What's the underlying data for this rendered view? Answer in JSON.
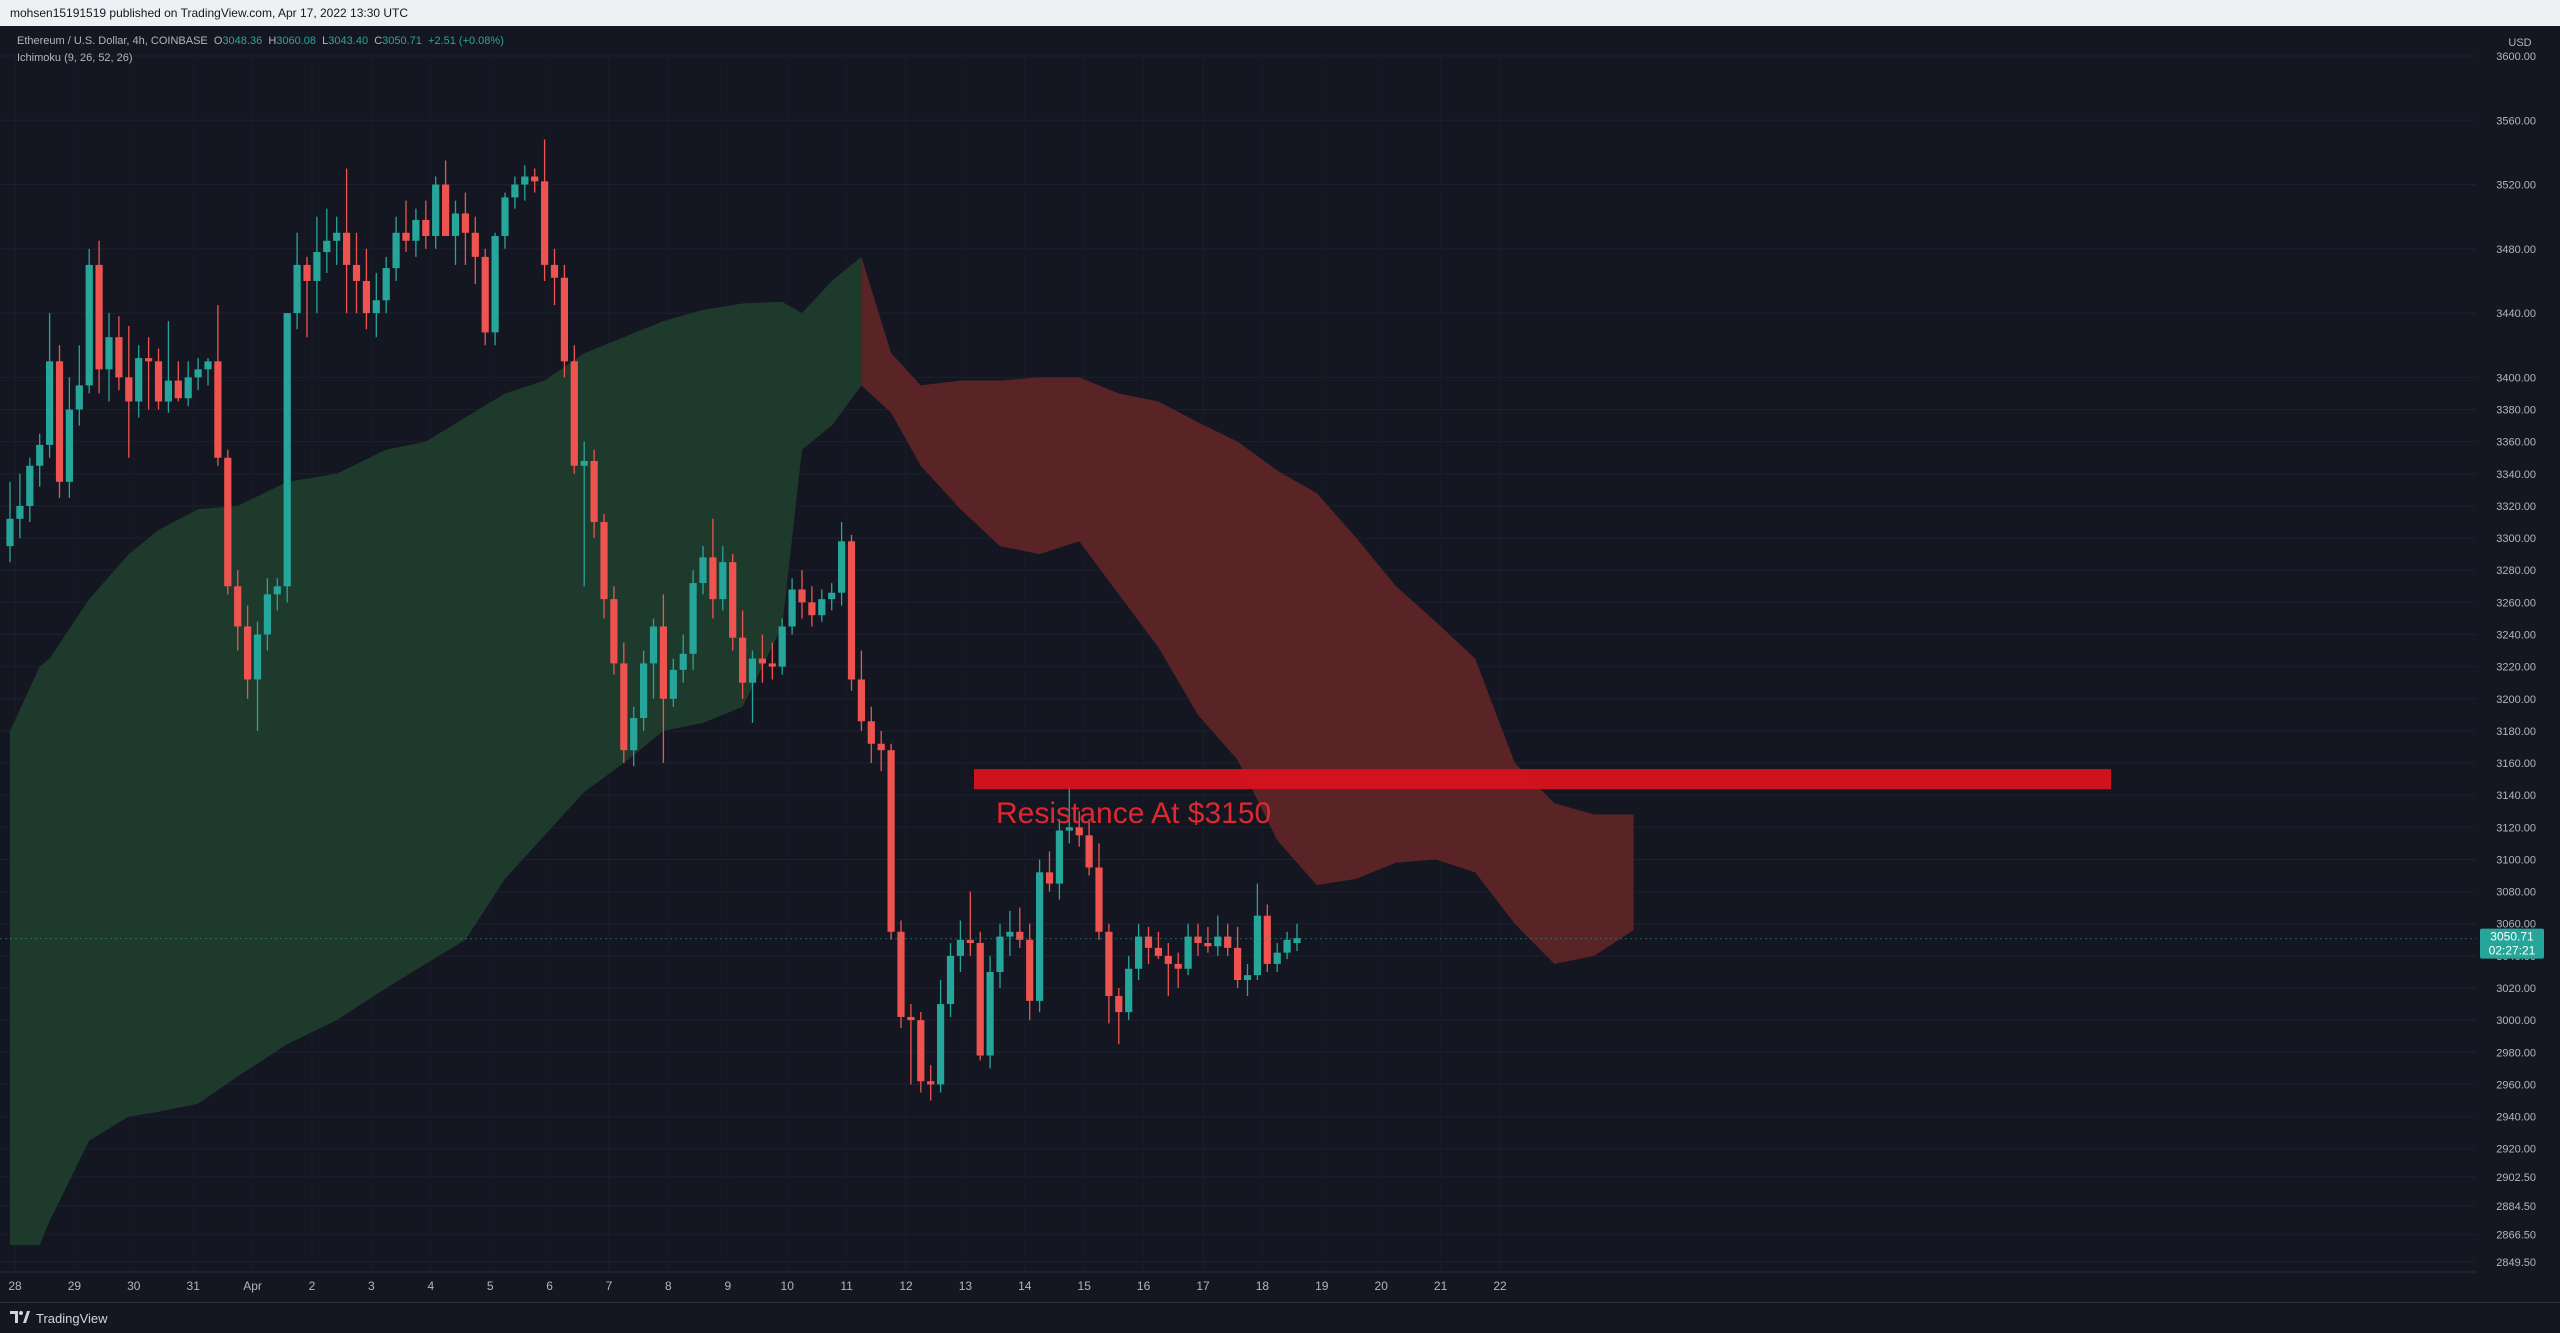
{
  "header": {
    "published": "mohsen15191519 published on TradingView.com, Apr 17, 2022 13:30 UTC"
  },
  "legend": {
    "symbol": "Ethereum / U.S. Dollar, 4h, COINBASE",
    "o_label": "O",
    "o": "3048.36",
    "h_label": "H",
    "h": "3060.08",
    "l_label": "L",
    "l": "3043.40",
    "c_label": "C",
    "c": "3050.71",
    "chg": "+2.51 (+0.08%)",
    "indicator": "Ichimoku (9, 26, 52, 26)"
  },
  "price_axis": {
    "currency": "USD",
    "last_price": "3050.71",
    "countdown": "02:27:21"
  },
  "annotation": {
    "text": "Resistance At $3150"
  },
  "footer": {
    "brand": "TradingView"
  },
  "colors": {
    "background": "#141722",
    "up": "#26a69a",
    "down": "#ef5350",
    "cloud_bull": "#1e3a2c",
    "cloud_bear": "#5a2427",
    "resistance": "#d9121f",
    "axis_text": "#b2b5be"
  },
  "chart_data": {
    "type": "candlestick",
    "symbol": "ETHUSD",
    "timeframe": "4h",
    "x_ticks": [
      "28",
      "29",
      "30",
      "31",
      "Apr",
      "2",
      "3",
      "4",
      "5",
      "6",
      "7",
      "8",
      "9",
      "10",
      "11",
      "12",
      "13",
      "14",
      "15",
      "16",
      "17",
      "18",
      "19",
      "20",
      "21",
      "22"
    ],
    "y_ticks": [
      "3600.00",
      "3560.00",
      "3520.00",
      "3480.00",
      "3440.00",
      "3400.00",
      "3380.00",
      "3360.00",
      "3340.00",
      "3320.00",
      "3300.00",
      "3280.00",
      "3260.00",
      "3240.00",
      "3220.00",
      "3200.00",
      "3180.00",
      "3160.00",
      "3140.00",
      "3120.00",
      "3100.00",
      "3080.00",
      "3060.00",
      "3040.00",
      "3020.00",
      "3000.00",
      "2980.00",
      "2960.00",
      "2940.00",
      "2920.00",
      "2902.50",
      "2884.50",
      "2866.50",
      "2849.50"
    ],
    "candles": [
      {
        "o": 3295,
        "h": 3335,
        "l": 3285,
        "c": 3312
      },
      {
        "o": 3312,
        "h": 3340,
        "l": 3300,
        "c": 3320
      },
      {
        "o": 3320,
        "h": 3350,
        "l": 3310,
        "c": 3345
      },
      {
        "o": 3345,
        "h": 3365,
        "l": 3332,
        "c": 3358
      },
      {
        "o": 3358,
        "h": 3440,
        "l": 3350,
        "c": 3410
      },
      {
        "o": 3410,
        "h": 3420,
        "l": 3325,
        "c": 3335
      },
      {
        "o": 3335,
        "h": 3400,
        "l": 3325,
        "c": 3380
      },
      {
        "o": 3380,
        "h": 3420,
        "l": 3370,
        "c": 3395
      },
      {
        "o": 3395,
        "h": 3480,
        "l": 3390,
        "c": 3470
      },
      {
        "o": 3470,
        "h": 3485,
        "l": 3390,
        "c": 3405
      },
      {
        "o": 3405,
        "h": 3440,
        "l": 3385,
        "c": 3425
      },
      {
        "o": 3425,
        "h": 3438,
        "l": 3392,
        "c": 3400
      },
      {
        "o": 3400,
        "h": 3432,
        "l": 3350,
        "c": 3385
      },
      {
        "o": 3385,
        "h": 3420,
        "l": 3375,
        "c": 3412
      },
      {
        "o": 3412,
        "h": 3425,
        "l": 3380,
        "c": 3410
      },
      {
        "o": 3410,
        "h": 3418,
        "l": 3380,
        "c": 3385
      },
      {
        "o": 3385,
        "h": 3435,
        "l": 3378,
        "c": 3398
      },
      {
        "o": 3398,
        "h": 3410,
        "l": 3385,
        "c": 3387
      },
      {
        "o": 3387,
        "h": 3410,
        "l": 3382,
        "c": 3400
      },
      {
        "o": 3400,
        "h": 3412,
        "l": 3392,
        "c": 3405
      },
      {
        "o": 3405,
        "h": 3412,
        "l": 3395,
        "c": 3410
      },
      {
        "o": 3410,
        "h": 3445,
        "l": 3345,
        "c": 3350
      },
      {
        "o": 3350,
        "h": 3355,
        "l": 3265,
        "c": 3270
      },
      {
        "o": 3270,
        "h": 3280,
        "l": 3230,
        "c": 3245
      },
      {
        "o": 3245,
        "h": 3258,
        "l": 3200,
        "c": 3212
      },
      {
        "o": 3212,
        "h": 3248,
        "l": 3180,
        "c": 3240
      },
      {
        "o": 3240,
        "h": 3275,
        "l": 3230,
        "c": 3265
      },
      {
        "o": 3265,
        "h": 3275,
        "l": 3255,
        "c": 3270
      },
      {
        "o": 3270,
        "h": 3440,
        "l": 3260,
        "c": 3440
      },
      {
        "o": 3440,
        "h": 3490,
        "l": 3430,
        "c": 3470
      },
      {
        "o": 3470,
        "h": 3475,
        "l": 3425,
        "c": 3460
      },
      {
        "o": 3460,
        "h": 3500,
        "l": 3440,
        "c": 3478
      },
      {
        "o": 3478,
        "h": 3505,
        "l": 3465,
        "c": 3485
      },
      {
        "o": 3485,
        "h": 3500,
        "l": 3470,
        "c": 3490
      },
      {
        "o": 3490,
        "h": 3530,
        "l": 3440,
        "c": 3470
      },
      {
        "o": 3470,
        "h": 3490,
        "l": 3440,
        "c": 3460
      },
      {
        "o": 3460,
        "h": 3480,
        "l": 3430,
        "c": 3440
      },
      {
        "o": 3440,
        "h": 3465,
        "l": 3425,
        "c": 3448
      },
      {
        "o": 3448,
        "h": 3475,
        "l": 3440,
        "c": 3468
      },
      {
        "o": 3468,
        "h": 3500,
        "l": 3460,
        "c": 3490
      },
      {
        "o": 3490,
        "h": 3510,
        "l": 3478,
        "c": 3485
      },
      {
        "o": 3485,
        "h": 3505,
        "l": 3475,
        "c": 3498
      },
      {
        "o": 3498,
        "h": 3510,
        "l": 3480,
        "c": 3488
      },
      {
        "o": 3488,
        "h": 3525,
        "l": 3480,
        "c": 3520
      },
      {
        "o": 3520,
        "h": 3535,
        "l": 3490,
        "c": 3488
      },
      {
        "o": 3488,
        "h": 3510,
        "l": 3470,
        "c": 3502
      },
      {
        "o": 3502,
        "h": 3515,
        "l": 3470,
        "c": 3490
      },
      {
        "o": 3490,
        "h": 3500,
        "l": 3458,
        "c": 3475
      },
      {
        "o": 3475,
        "h": 3480,
        "l": 3420,
        "c": 3428
      },
      {
        "o": 3428,
        "h": 3490,
        "l": 3420,
        "c": 3488
      },
      {
        "o": 3488,
        "h": 3515,
        "l": 3480,
        "c": 3512
      },
      {
        "o": 3512,
        "h": 3525,
        "l": 3505,
        "c": 3520
      },
      {
        "o": 3520,
        "h": 3532,
        "l": 3510,
        "c": 3525
      },
      {
        "o": 3525,
        "h": 3530,
        "l": 3515,
        "c": 3522
      },
      {
        "o": 3522,
        "h": 3548,
        "l": 3460,
        "c": 3470
      },
      {
        "o": 3470,
        "h": 3480,
        "l": 3445,
        "c": 3462
      },
      {
        "o": 3462,
        "h": 3470,
        "l": 3400,
        "c": 3410
      },
      {
        "o": 3410,
        "h": 3420,
        "l": 3340,
        "c": 3345
      },
      {
        "o": 3345,
        "h": 3360,
        "l": 3270,
        "c": 3348
      },
      {
        "o": 3348,
        "h": 3355,
        "l": 3300,
        "c": 3310
      },
      {
        "o": 3310,
        "h": 3315,
        "l": 3250,
        "c": 3262
      },
      {
        "o": 3262,
        "h": 3270,
        "l": 3215,
        "c": 3222
      },
      {
        "o": 3222,
        "h": 3235,
        "l": 3160,
        "c": 3168
      },
      {
        "o": 3168,
        "h": 3195,
        "l": 3158,
        "c": 3188
      },
      {
        "o": 3188,
        "h": 3230,
        "l": 3180,
        "c": 3222
      },
      {
        "o": 3222,
        "h": 3250,
        "l": 3200,
        "c": 3245
      },
      {
        "o": 3245,
        "h": 3265,
        "l": 3160,
        "c": 3200
      },
      {
        "o": 3200,
        "h": 3225,
        "l": 3195,
        "c": 3218
      },
      {
        "o": 3218,
        "h": 3240,
        "l": 3210,
        "c": 3228
      },
      {
        "o": 3228,
        "h": 3280,
        "l": 3218,
        "c": 3272
      },
      {
        "o": 3272,
        "h": 3295,
        "l": 3265,
        "c": 3288
      },
      {
        "o": 3288,
        "h": 3312,
        "l": 3250,
        "c": 3262
      },
      {
        "o": 3262,
        "h": 3295,
        "l": 3255,
        "c": 3285
      },
      {
        "o": 3285,
        "h": 3290,
        "l": 3230,
        "c": 3238
      },
      {
        "o": 3238,
        "h": 3255,
        "l": 3200,
        "c": 3210
      },
      {
        "o": 3210,
        "h": 3230,
        "l": 3185,
        "c": 3225
      },
      {
        "o": 3225,
        "h": 3240,
        "l": 3210,
        "c": 3222
      },
      {
        "o": 3222,
        "h": 3235,
        "l": 3212,
        "c": 3220
      },
      {
        "o": 3220,
        "h": 3250,
        "l": 3215,
        "c": 3245
      },
      {
        "o": 3245,
        "h": 3275,
        "l": 3240,
        "c": 3268
      },
      {
        "o": 3268,
        "h": 3280,
        "l": 3250,
        "c": 3260
      },
      {
        "o": 3260,
        "h": 3270,
        "l": 3245,
        "c": 3252
      },
      {
        "o": 3252,
        "h": 3268,
        "l": 3248,
        "c": 3262
      },
      {
        "o": 3262,
        "h": 3272,
        "l": 3255,
        "c": 3266
      },
      {
        "o": 3266,
        "h": 3310,
        "l": 3258,
        "c": 3298
      },
      {
        "o": 3298,
        "h": 3302,
        "l": 3205,
        "c": 3212
      },
      {
        "o": 3212,
        "h": 3230,
        "l": 3180,
        "c": 3186
      },
      {
        "o": 3186,
        "h": 3195,
        "l": 3160,
        "c": 3172
      },
      {
        "o": 3172,
        "h": 3180,
        "l": 3155,
        "c": 3168
      },
      {
        "o": 3168,
        "h": 3172,
        "l": 3050,
        "c": 3055
      },
      {
        "o": 3055,
        "h": 3062,
        "l": 2995,
        "c": 3002
      },
      {
        "o": 3002,
        "h": 3010,
        "l": 2960,
        "c": 3000
      },
      {
        "o": 3000,
        "h": 3005,
        "l": 2955,
        "c": 2962
      },
      {
        "o": 2962,
        "h": 2972,
        "l": 2950,
        "c": 2960
      },
      {
        "o": 2960,
        "h": 3025,
        "l": 2955,
        "c": 3010
      },
      {
        "o": 3010,
        "h": 3048,
        "l": 3002,
        "c": 3040
      },
      {
        "o": 3040,
        "h": 3062,
        "l": 3030,
        "c": 3050
      },
      {
        "o": 3050,
        "h": 3080,
        "l": 3040,
        "c": 3048
      },
      {
        "o": 3048,
        "h": 3055,
        "l": 2975,
        "c": 2978
      },
      {
        "o": 2978,
        "h": 3040,
        "l": 2970,
        "c": 3030
      },
      {
        "o": 3030,
        "h": 3060,
        "l": 3020,
        "c": 3052
      },
      {
        "o": 3052,
        "h": 3068,
        "l": 3040,
        "c": 3055
      },
      {
        "o": 3055,
        "h": 3070,
        "l": 3045,
        "c": 3050
      },
      {
        "o": 3050,
        "h": 3060,
        "l": 3000,
        "c": 3012
      },
      {
        "o": 3012,
        "h": 3100,
        "l": 3005,
        "c": 3092
      },
      {
        "o": 3092,
        "h": 3105,
        "l": 3080,
        "c": 3085
      },
      {
        "o": 3085,
        "h": 3125,
        "l": 3075,
        "c": 3118
      },
      {
        "o": 3118,
        "h": 3145,
        "l": 3110,
        "c": 3120
      },
      {
        "o": 3120,
        "h": 3130,
        "l": 3108,
        "c": 3115
      },
      {
        "o": 3115,
        "h": 3125,
        "l": 3090,
        "c": 3095
      },
      {
        "o": 3095,
        "h": 3110,
        "l": 3050,
        "c": 3055
      },
      {
        "o": 3055,
        "h": 3060,
        "l": 2998,
        "c": 3015
      },
      {
        "o": 3015,
        "h": 3020,
        "l": 2985,
        "c": 3005
      },
      {
        "o": 3005,
        "h": 3040,
        "l": 3000,
        "c": 3032
      },
      {
        "o": 3032,
        "h": 3060,
        "l": 3025,
        "c": 3052
      },
      {
        "o": 3052,
        "h": 3058,
        "l": 3035,
        "c": 3045
      },
      {
        "o": 3045,
        "h": 3055,
        "l": 3038,
        "c": 3040
      },
      {
        "o": 3040,
        "h": 3048,
        "l": 3015,
        "c": 3035
      },
      {
        "o": 3035,
        "h": 3042,
        "l": 3020,
        "c": 3032
      },
      {
        "o": 3032,
        "h": 3060,
        "l": 3028,
        "c": 3052
      },
      {
        "o": 3052,
        "h": 3060,
        "l": 3040,
        "c": 3048
      },
      {
        "o": 3048,
        "h": 3058,
        "l": 3042,
        "c": 3046
      },
      {
        "o": 3046,
        "h": 3065,
        "l": 3040,
        "c": 3052
      },
      {
        "o": 3052,
        "h": 3060,
        "l": 3040,
        "c": 3045
      },
      {
        "o": 3045,
        "h": 3058,
        "l": 3020,
        "c": 3025
      },
      {
        "o": 3025,
        "h": 3035,
        "l": 3015,
        "c": 3028
      },
      {
        "o": 3028,
        "h": 3085,
        "l": 3025,
        "c": 3065
      },
      {
        "o": 3065,
        "h": 3072,
        "l": 3030,
        "c": 3035
      },
      {
        "o": 3035,
        "h": 3048,
        "l": 3030,
        "c": 3042
      },
      {
        "o": 3042,
        "h": 3055,
        "l": 3038,
        "c": 3050
      },
      {
        "o": 3048,
        "h": 3060,
        "l": 3043,
        "c": 3051
      }
    ],
    "cloud": [
      {
        "t": 0,
        "a": 3180,
        "b": 2860
      },
      {
        "t": 3,
        "a": 3220,
        "b": 2860
      },
      {
        "t": 4,
        "a": 3225,
        "b": 2875
      },
      {
        "t": 8,
        "a": 3262,
        "b": 2925
      },
      {
        "t": 12,
        "a": 3290,
        "b": 2940
      },
      {
        "t": 15,
        "a": 3305,
        "b": 2943
      },
      {
        "t": 19,
        "a": 3318,
        "b": 2948
      },
      {
        "t": 23,
        "a": 3320,
        "b": 2965
      },
      {
        "t": 28,
        "a": 3335,
        "b": 2985
      },
      {
        "t": 33,
        "a": 3340,
        "b": 3000
      },
      {
        "t": 38,
        "a": 3355,
        "b": 3020
      },
      {
        "t": 42,
        "a": 3360,
        "b": 3035
      },
      {
        "t": 46,
        "a": 3375,
        "b": 3050
      },
      {
        "t": 50,
        "a": 3390,
        "b": 3088
      },
      {
        "t": 54,
        "a": 3398,
        "b": 3115
      },
      {
        "t": 58,
        "a": 3415,
        "b": 3142
      },
      {
        "t": 62,
        "a": 3425,
        "b": 3160
      },
      {
        "t": 66,
        "a": 3435,
        "b": 3180
      },
      {
        "t": 70,
        "a": 3442,
        "b": 3185
      },
      {
        "t": 74,
        "a": 3446,
        "b": 3195
      },
      {
        "t": 78,
        "a": 3447,
        "b": 3245
      },
      {
        "t": 80,
        "a": 3440,
        "b": 3355
      },
      {
        "t": 83,
        "a": 3460,
        "b": 3370
      },
      {
        "t": 86,
        "a": 3475,
        "b": 3395
      },
      {
        "t": 89,
        "a": 3415,
        "b": 3378
      },
      {
        "t": 92,
        "a": 3395,
        "b": 3345
      },
      {
        "t": 96,
        "a": 3398,
        "b": 3318
      },
      {
        "t": 100,
        "a": 3398,
        "b": 3295
      },
      {
        "t": 104,
        "a": 3400,
        "b": 3290
      },
      {
        "t": 108,
        "a": 3400,
        "b": 3298
      },
      {
        "t": 112,
        "a": 3390,
        "b": 3265
      },
      {
        "t": 116,
        "a": 3385,
        "b": 3232
      },
      {
        "t": 120,
        "a": 3372,
        "b": 3190
      },
      {
        "t": 124,
        "a": 3360,
        "b": 3162
      },
      {
        "t": 128,
        "a": 3342,
        "b": 3112
      },
      {
        "t": 132,
        "a": 3328,
        "b": 3084
      },
      {
        "t": 136,
        "a": 3300,
        "b": 3088
      },
      {
        "t": 140,
        "a": 3270,
        "b": 3098
      },
      {
        "t": 144,
        "a": 3248,
        "b": 3100
      },
      {
        "t": 148,
        "a": 3225,
        "b": 3092
      },
      {
        "t": 152,
        "a": 3160,
        "b": 3060
      },
      {
        "t": 156,
        "a": 3135,
        "b": 3035
      },
      {
        "t": 160,
        "a": 3128,
        "b": 3040
      },
      {
        "t": 164,
        "a": 3128,
        "b": 3056
      }
    ],
    "resistance_level": 3150,
    "last_price": 3050.71,
    "ylim": [
      2840,
      3610
    ]
  }
}
